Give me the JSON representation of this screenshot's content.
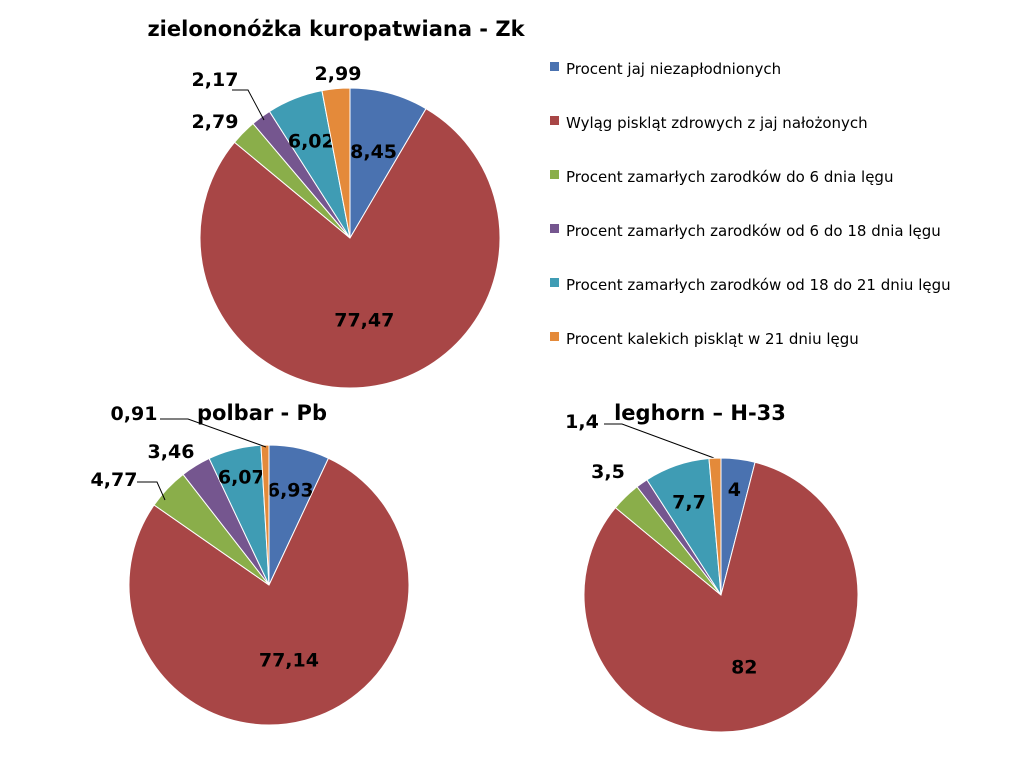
{
  "colors": [
    "#4a72b0",
    "#a84646",
    "#8aae4a",
    "#75568f",
    "#3f9cb4",
    "#e48a3a"
  ],
  "legend": {
    "items": [
      "Procent jaj niezapłodnionych",
      "Wyląg piskląt zdrowych z jaj nałożonych",
      "Procent zamarłych zarodków do 6 dnia lęgu",
      "Procent zamarłych zarodków od 6 do 18 dnia lęgu",
      "Procent zamarłych zarodków od 18 do 21 dniu lęgu",
      "Procent kalekich piskląt w 21 dniu lęgu"
    ]
  },
  "chart_data": [
    {
      "type": "pie",
      "title": "zielononóżka kuropatwiana - Zk",
      "values": [
        8.45,
        77.47,
        2.79,
        2.17,
        6.02,
        2.99
      ],
      "labels": [
        "8,45",
        "77,47",
        "2,79",
        "2,17",
        "6,02",
        "2,99"
      ],
      "start_angle_deg": 0,
      "direction": "clockwise"
    },
    {
      "type": "pie",
      "title": "polbar - Pb",
      "values": [
        6.93,
        77.14,
        4.77,
        3.46,
        6.07,
        0.91
      ],
      "labels": [
        "6,93",
        "77,14",
        "4,77",
        "3,46",
        "6,07",
        "0,91"
      ],
      "start_angle_deg": 0,
      "direction": "clockwise"
    },
    {
      "type": "pie",
      "title": "leghorn – H-33",
      "values": [
        4,
        82,
        3.5,
        1.4,
        7.7,
        1.4
      ],
      "labels": [
        "4",
        "82",
        "3,5",
        "1,4",
        "7,7",
        ""
      ],
      "start_angle_deg": 0,
      "direction": "clockwise"
    }
  ]
}
